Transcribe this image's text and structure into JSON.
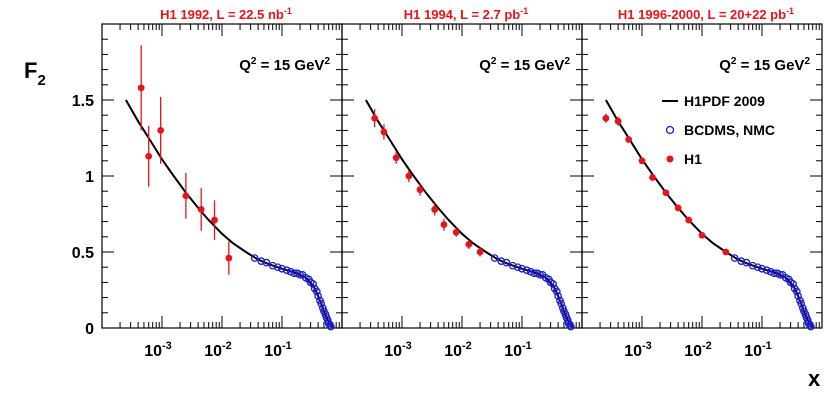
{
  "chart_data": {
    "type": "scatter",
    "ylabel": "F",
    "ylabel_sub": "2",
    "xlabel": "x",
    "xscale": "log",
    "xlim": [
      0.0001,
      1
    ],
    "ylim": [
      0,
      2.0
    ],
    "yticks": [
      {
        "value": 0,
        "label": "0"
      },
      {
        "value": 0.5,
        "label": "0.5"
      },
      {
        "value": 1.0,
        "label": "1"
      },
      {
        "value": 1.5,
        "label": "1.5"
      }
    ],
    "xticks": [
      {
        "value": 0.001,
        "base": "10",
        "exp": "-3"
      },
      {
        "value": 0.01,
        "base": "10",
        "exp": "-2"
      },
      {
        "value": 0.1,
        "base": "10",
        "exp": "-1"
      }
    ],
    "q2_text": {
      "main": "Q",
      "exp1": "2",
      "rest": " = 15 GeV",
      "exp2": "2"
    },
    "legend": [
      {
        "label": "H1PDF 2009",
        "kind": "line"
      },
      {
        "label": "BCDMS, NMC",
        "kind": "open-circle"
      },
      {
        "label": "H1",
        "kind": "dot"
      }
    ],
    "colors": {
      "h1": "#e8141b",
      "fixed_target": "#1a1ad6",
      "curve": "#000000"
    },
    "curve": {
      "name": "H1PDF 2009",
      "x": [
        0.00025,
        0.0004,
        0.0006,
        0.001,
        0.0015,
        0.0025,
        0.004,
        0.006,
        0.01,
        0.015,
        0.025,
        0.04,
        0.06,
        0.1,
        0.15,
        0.2,
        0.25,
        0.3,
        0.35,
        0.4,
        0.45,
        0.5,
        0.55,
        0.6,
        0.65,
        0.7
      ],
      "y": [
        1.5,
        1.36,
        1.25,
        1.11,
        1.01,
        0.89,
        0.79,
        0.71,
        0.62,
        0.56,
        0.5,
        0.45,
        0.42,
        0.39,
        0.37,
        0.35,
        0.33,
        0.3,
        0.26,
        0.21,
        0.16,
        0.11,
        0.07,
        0.04,
        0.02,
        0.0
      ]
    },
    "fixed_target": {
      "name": "BCDMS, NMC",
      "x": [
        0.035,
        0.045,
        0.055,
        0.07,
        0.085,
        0.1,
        0.12,
        0.14,
        0.16,
        0.18,
        0.2,
        0.22,
        0.25,
        0.28,
        0.3,
        0.33,
        0.35,
        0.38,
        0.4,
        0.43,
        0.45,
        0.48,
        0.5,
        0.53,
        0.55,
        0.58,
        0.6,
        0.63,
        0.65
      ],
      "y": [
        0.46,
        0.44,
        0.43,
        0.41,
        0.4,
        0.39,
        0.38,
        0.37,
        0.36,
        0.36,
        0.35,
        0.35,
        0.33,
        0.32,
        0.3,
        0.29,
        0.26,
        0.24,
        0.21,
        0.18,
        0.16,
        0.13,
        0.11,
        0.09,
        0.07,
        0.05,
        0.03,
        0.02,
        0.01
      ]
    },
    "panels": [
      {
        "title": "H1 1992, L = 22.5 nb",
        "title_exp": "-1",
        "show_legend": false,
        "h1": {
          "x": [
            0.00045,
            0.0006,
            0.00095,
            0.0025,
            0.0045,
            0.0075,
            0.013
          ],
          "y": [
            1.58,
            1.13,
            1.3,
            0.87,
            0.78,
            0.71,
            0.46
          ],
          "err": [
            0.28,
            0.2,
            0.22,
            0.15,
            0.14,
            0.13,
            0.11
          ]
        }
      },
      {
        "title": "H1 1994, L = 2.7 pb",
        "title_exp": "-1",
        "show_legend": false,
        "h1": {
          "x": [
            0.00035,
            0.0005,
            0.0008,
            0.0013,
            0.002,
            0.0035,
            0.005,
            0.008,
            0.013,
            0.02
          ],
          "y": [
            1.38,
            1.29,
            1.12,
            1.0,
            0.91,
            0.78,
            0.68,
            0.63,
            0.55,
            0.5
          ],
          "err": [
            0.06,
            0.05,
            0.04,
            0.04,
            0.04,
            0.04,
            0.04,
            0.03,
            0.03,
            0.03
          ]
        }
      },
      {
        "title": "H1 1996-2000, L = 20+22 pb",
        "title_exp": "-1",
        "show_legend": true,
        "h1": {
          "x": [
            0.00025,
            0.0004,
            0.0006,
            0.001,
            0.0015,
            0.0025,
            0.004,
            0.006,
            0.01,
            0.025
          ],
          "y": [
            1.38,
            1.36,
            1.24,
            1.1,
            0.99,
            0.89,
            0.79,
            0.71,
            0.61,
            0.5
          ],
          "err": [
            0.03,
            0.03,
            0.02,
            0.02,
            0.02,
            0.02,
            0.02,
            0.02,
            0.02,
            0.02
          ]
        }
      }
    ]
  }
}
